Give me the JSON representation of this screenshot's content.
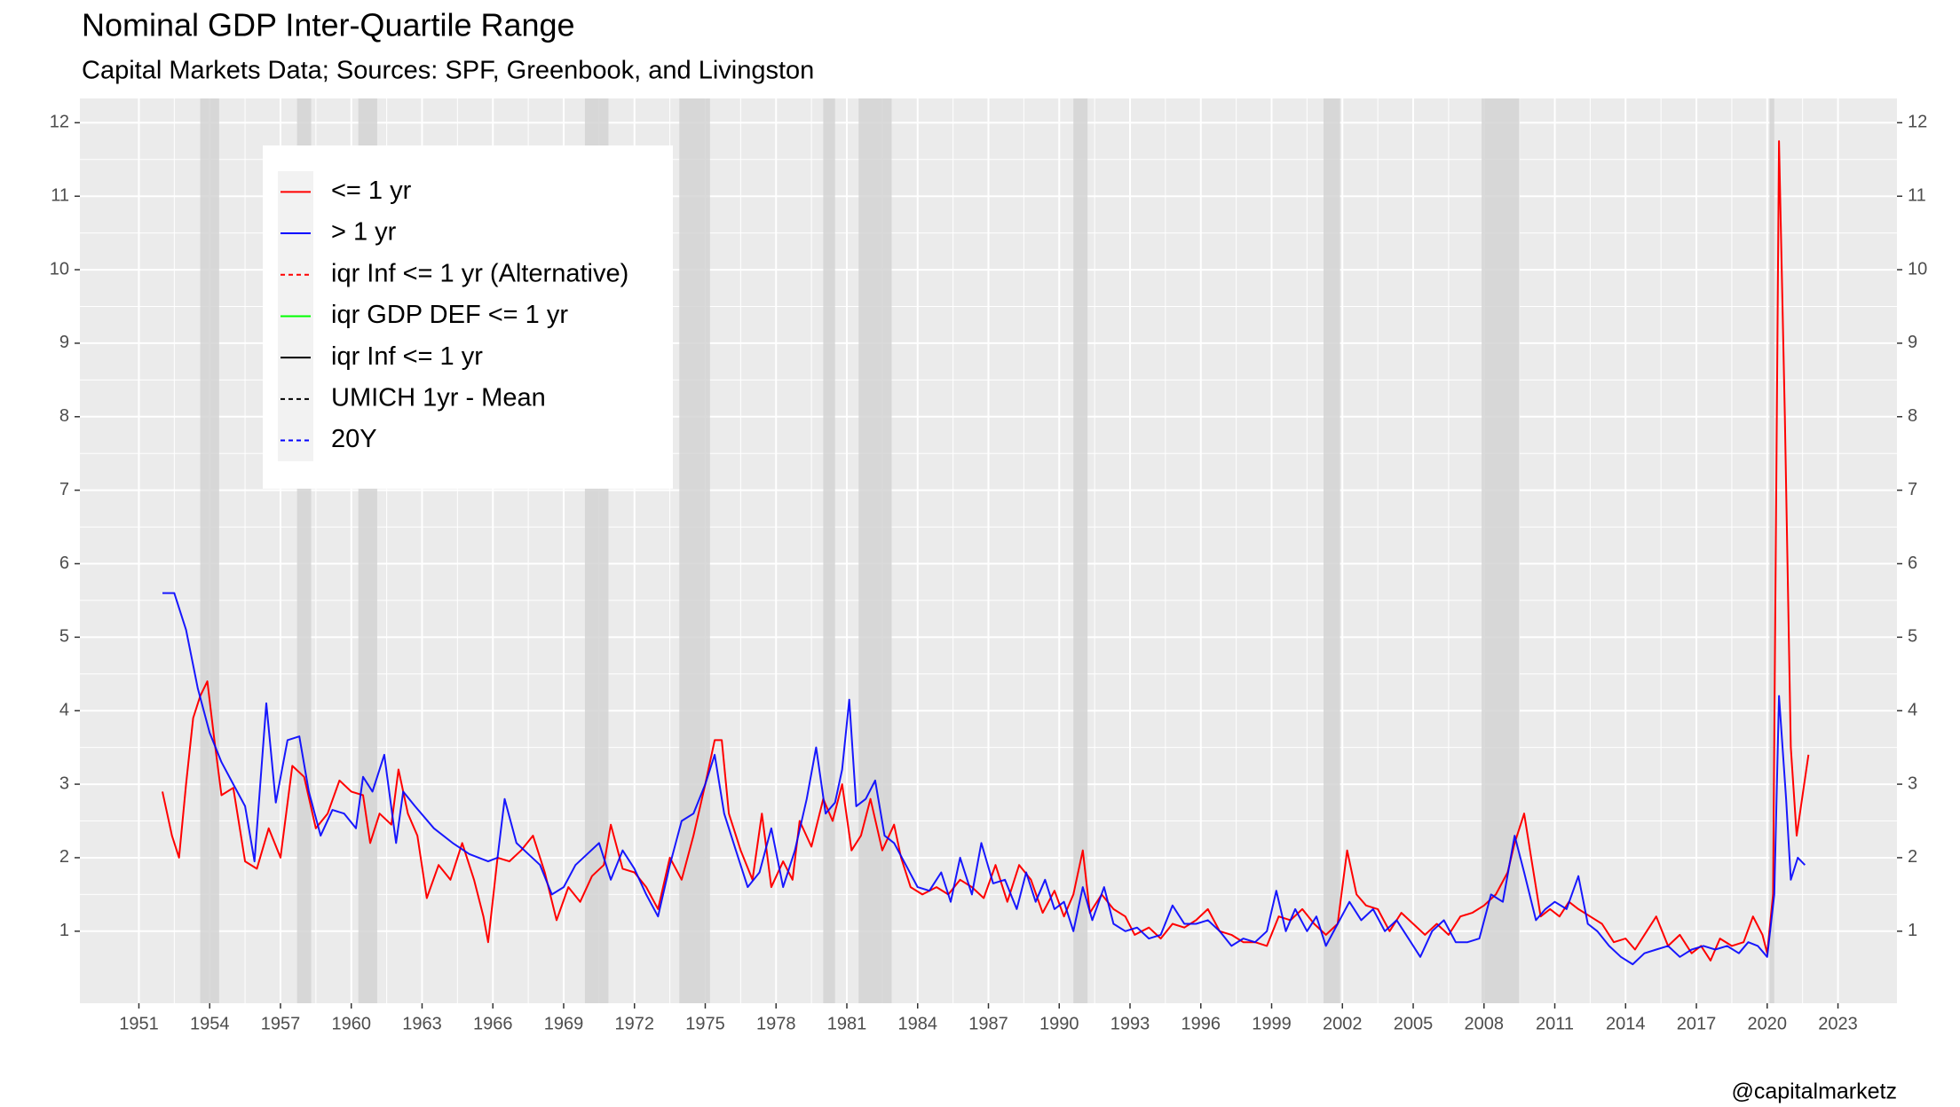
{
  "chart_data": {
    "type": "line",
    "title": "Nominal GDP Inter-Quartile Range",
    "subtitle": "Capital Markets Data; Sources: SPF, Greenbook, and Livingston",
    "caption": "@capitalmarketz",
    "xlim": [
      1948.5,
      2025.5
    ],
    "xticks": [
      1951,
      1954,
      1957,
      1960,
      1963,
      1966,
      1969,
      1972,
      1975,
      1978,
      1981,
      1984,
      1987,
      1990,
      1993,
      1996,
      1999,
      2002,
      2005,
      2008,
      2011,
      2014,
      2017,
      2020,
      2023
    ],
    "ylim": [
      0.02,
      12.33
    ],
    "yticks": [
      1,
      2,
      3,
      4,
      5,
      6,
      7,
      8,
      9,
      10,
      11,
      12
    ],
    "y2lim": [
      0.02,
      12.33
    ],
    "y2ticks": [
      1,
      2,
      3,
      4,
      5,
      6,
      7,
      8,
      9,
      10,
      11,
      12
    ],
    "grid": true,
    "legend_position": "top-left",
    "shaded_periods": [
      [
        1953.6,
        1954.4
      ],
      [
        1957.7,
        1958.3
      ],
      [
        1960.3,
        1961.1
      ],
      [
        1969.9,
        1970.9
      ],
      [
        1973.9,
        1975.2
      ],
      [
        1980.0,
        1980.5
      ],
      [
        1981.5,
        1982.9
      ],
      [
        1990.6,
        1991.2
      ],
      [
        2001.2,
        2001.9
      ],
      [
        2007.9,
        2009.5
      ],
      [
        2020.1,
        2020.3
      ]
    ],
    "series": [
      {
        "name": "<= 1 yr",
        "color": "#ff0000",
        "linestyle": "solid",
        "x": [
          1952.0,
          1952.4,
          1952.7,
          1953.0,
          1953.3,
          1953.6,
          1953.9,
          1954.2,
          1954.5,
          1955.0,
          1955.5,
          1956.0,
          1956.5,
          1957.0,
          1957.5,
          1958.0,
          1958.5,
          1959.0,
          1959.5,
          1960.0,
          1960.5,
          1960.8,
          1961.2,
          1961.7,
          1962.0,
          1962.4,
          1962.8,
          1963.2,
          1963.7,
          1964.2,
          1964.7,
          1965.2,
          1965.6,
          1965.8,
          1966.2,
          1966.7,
          1967.2,
          1967.7,
          1968.2,
          1968.7,
          1969.2,
          1969.7,
          1970.2,
          1970.7,
          1971.0,
          1971.5,
          1972.0,
          1972.5,
          1973.0,
          1973.5,
          1974.0,
          1974.5,
          1975.0,
          1975.4,
          1975.7,
          1976.0,
          1976.5,
          1977.0,
          1977.4,
          1977.8,
          1978.3,
          1978.7,
          1979.0,
          1979.5,
          1980.0,
          1980.4,
          1980.8,
          1981.2,
          1981.6,
          1982.0,
          1982.5,
          1983.0,
          1983.3,
          1983.7,
          1984.2,
          1984.8,
          1985.3,
          1985.8,
          1986.3,
          1986.8,
          1987.3,
          1987.8,
          1988.3,
          1988.8,
          1989.3,
          1989.8,
          1990.2,
          1990.6,
          1991.0,
          1991.3,
          1991.8,
          1992.3,
          1992.8,
          1993.2,
          1993.8,
          1994.3,
          1994.8,
          1995.3,
          1995.8,
          1996.3,
          1996.8,
          1997.3,
          1997.8,
          1998.3,
          1998.8,
          1999.3,
          1999.8,
          2000.3,
          2000.8,
          2001.3,
          2001.8,
          2002.2,
          2002.6,
          2003.0,
          2003.5,
          2004.0,
          2004.5,
          2005.0,
          2005.5,
          2006.0,
          2006.5,
          2007.0,
          2007.5,
          2008.0,
          2008.5,
          2009.0,
          2009.3,
          2009.7,
          2010.0,
          2010.4,
          2010.8,
          2011.2,
          2011.6,
          2012.0,
          2012.5,
          2013.0,
          2013.5,
          2014.0,
          2014.4,
          2014.8,
          2015.3,
          2015.8,
          2016.3,
          2016.8,
          2017.2,
          2017.6,
          2018.0,
          2018.5,
          2019.0,
          2019.4,
          2019.8,
          2020.0,
          2020.25,
          2020.5,
          2020.75,
          2021.0,
          2021.25,
          2021.75
        ],
        "values": [
          2.9,
          2.3,
          2.0,
          3.0,
          3.9,
          4.2,
          4.4,
          3.6,
          2.85,
          2.95,
          1.95,
          1.85,
          2.4,
          2.0,
          3.25,
          3.1,
          2.4,
          2.6,
          3.05,
          2.9,
          2.85,
          2.2,
          2.6,
          2.45,
          3.2,
          2.6,
          2.3,
          1.45,
          1.9,
          1.7,
          2.2,
          1.7,
          1.2,
          0.85,
          2.0,
          1.95,
          2.1,
          2.3,
          1.8,
          1.15,
          1.6,
          1.4,
          1.75,
          1.9,
          2.45,
          1.85,
          1.8,
          1.6,
          1.3,
          2.0,
          1.7,
          2.3,
          3.0,
          3.6,
          3.6,
          2.6,
          2.1,
          1.7,
          2.6,
          1.6,
          1.95,
          1.7,
          2.5,
          2.15,
          2.8,
          2.5,
          3.0,
          2.1,
          2.3,
          2.8,
          2.1,
          2.45,
          2.0,
          1.6,
          1.5,
          1.6,
          1.5,
          1.7,
          1.6,
          1.45,
          1.9,
          1.4,
          1.9,
          1.7,
          1.25,
          1.55,
          1.2,
          1.5,
          2.1,
          1.25,
          1.5,
          1.3,
          1.2,
          0.95,
          1.05,
          0.9,
          1.1,
          1.05,
          1.15,
          1.3,
          1.0,
          0.95,
          0.85,
          0.85,
          0.8,
          1.2,
          1.15,
          1.3,
          1.1,
          0.95,
          1.1,
          2.1,
          1.5,
          1.35,
          1.3,
          1.0,
          1.25,
          1.1,
          0.95,
          1.1,
          0.95,
          1.2,
          1.25,
          1.35,
          1.5,
          1.8,
          2.2,
          2.6,
          2.0,
          1.2,
          1.3,
          1.2,
          1.4,
          1.3,
          1.2,
          1.1,
          0.85,
          0.9,
          0.75,
          0.95,
          1.2,
          0.8,
          0.95,
          0.7,
          0.8,
          0.6,
          0.9,
          0.8,
          0.85,
          1.2,
          0.95,
          0.7,
          1.5,
          11.75,
          8.0,
          3.5,
          2.3,
          3.4
        ]
      },
      {
        "name": "> 1 yr",
        "color": "#0000ff",
        "linestyle": "solid",
        "x": [
          1952.0,
          1952.5,
          1953.0,
          1953.5,
          1954.0,
          1954.5,
          1955.0,
          1955.5,
          1955.9,
          1956.4,
          1956.8,
          1957.3,
          1957.8,
          1958.2,
          1958.7,
          1959.2,
          1959.7,
          1960.2,
          1960.5,
          1960.9,
          1961.4,
          1961.9,
          1962.2,
          1962.7,
          1963.5,
          1964.3,
          1965.0,
          1965.8,
          1966.2,
          1966.5,
          1967.0,
          1967.5,
          1968.0,
          1968.5,
          1969.0,
          1969.5,
          1970.0,
          1970.5,
          1971.0,
          1971.5,
          1972.0,
          1972.5,
          1973.0,
          1973.5,
          1974.0,
          1974.5,
          1975.0,
          1975.4,
          1975.8,
          1976.3,
          1976.8,
          1977.3,
          1977.8,
          1978.3,
          1978.8,
          1979.3,
          1979.7,
          1980.1,
          1980.5,
          1980.8,
          1981.1,
          1981.4,
          1981.8,
          1982.2,
          1982.6,
          1983.0,
          1983.5,
          1984.0,
          1984.5,
          1985.0,
          1985.4,
          1985.8,
          1986.3,
          1986.7,
          1987.2,
          1987.7,
          1988.2,
          1988.6,
          1989.0,
          1989.4,
          1989.8,
          1990.2,
          1990.6,
          1991.0,
          1991.4,
          1991.9,
          1992.3,
          1992.8,
          1993.3,
          1993.8,
          1994.3,
          1994.8,
          1995.3,
          1995.8,
          1996.3,
          1996.8,
          1997.3,
          1997.8,
          1998.3,
          1998.8,
          1999.2,
          1999.6,
          2000.0,
          2000.5,
          2000.9,
          2001.3,
          2001.8,
          2002.3,
          2002.8,
          2003.3,
          2003.8,
          2004.3,
          2004.8,
          2005.3,
          2005.8,
          2006.3,
          2006.8,
          2007.3,
          2007.8,
          2008.3,
          2008.8,
          2009.3,
          2009.7,
          2010.2,
          2010.6,
          2011.0,
          2011.5,
          2012.0,
          2012.4,
          2012.8,
          2013.3,
          2013.8,
          2014.3,
          2014.8,
          2015.3,
          2015.8,
          2016.3,
          2016.8,
          2017.3,
          2017.8,
          2018.3,
          2018.8,
          2019.2,
          2019.6,
          2020.0,
          2020.3,
          2020.5,
          2020.8,
          2021.0,
          2021.3,
          2021.6
        ],
        "values": [
          5.6,
          5.6,
          5.1,
          4.3,
          3.7,
          3.3,
          3.0,
          2.7,
          1.95,
          4.1,
          2.75,
          3.6,
          3.65,
          2.9,
          2.3,
          2.65,
          2.6,
          2.4,
          3.1,
          2.9,
          3.4,
          2.2,
          2.9,
          2.7,
          2.4,
          2.2,
          2.05,
          1.95,
          2.0,
          2.8,
          2.2,
          2.05,
          1.9,
          1.5,
          1.6,
          1.9,
          2.05,
          2.2,
          1.7,
          2.1,
          1.85,
          1.5,
          1.2,
          1.9,
          2.5,
          2.6,
          3.0,
          3.4,
          2.6,
          2.1,
          1.6,
          1.8,
          2.4,
          1.6,
          2.1,
          2.8,
          3.5,
          2.6,
          2.75,
          3.2,
          4.15,
          2.7,
          2.8,
          3.05,
          2.3,
          2.2,
          1.9,
          1.6,
          1.55,
          1.8,
          1.4,
          2.0,
          1.5,
          2.2,
          1.65,
          1.7,
          1.3,
          1.8,
          1.4,
          1.7,
          1.3,
          1.4,
          1.0,
          1.6,
          1.15,
          1.6,
          1.1,
          1.0,
          1.05,
          0.9,
          0.95,
          1.35,
          1.1,
          1.1,
          1.15,
          1.0,
          0.8,
          0.9,
          0.85,
          1.0,
          1.55,
          1.0,
          1.3,
          1.0,
          1.2,
          0.8,
          1.1,
          1.4,
          1.15,
          1.3,
          1.0,
          1.15,
          0.9,
          0.65,
          1.0,
          1.15,
          0.85,
          0.85,
          0.9,
          1.5,
          1.4,
          2.3,
          1.8,
          1.15,
          1.3,
          1.4,
          1.3,
          1.75,
          1.1,
          1.0,
          0.8,
          0.65,
          0.55,
          0.7,
          0.75,
          0.8,
          0.65,
          0.75,
          0.8,
          0.75,
          0.8,
          0.7,
          0.85,
          0.8,
          0.65,
          1.5,
          4.2,
          2.8,
          1.7,
          2.0,
          1.9
        ]
      },
      {
        "name": "iqr Inf <= 1 yr (Alternative)",
        "color": "#ff0000",
        "linestyle": "dashed",
        "x": [],
        "values": []
      },
      {
        "name": "iqr GDP DEF <= 1 yr",
        "color": "#00ff00",
        "linestyle": "solid",
        "x": [],
        "values": []
      },
      {
        "name": "iqr Inf <= 1 yr",
        "color": "#000000",
        "linestyle": "solid",
        "x": [],
        "values": []
      },
      {
        "name": "UMICH 1yr - Mean",
        "color": "#000000",
        "linestyle": "dashed",
        "x": [],
        "values": []
      },
      {
        "name": "20Y",
        "color": "#0000ff",
        "linestyle": "dashed",
        "x": [],
        "values": []
      }
    ]
  }
}
